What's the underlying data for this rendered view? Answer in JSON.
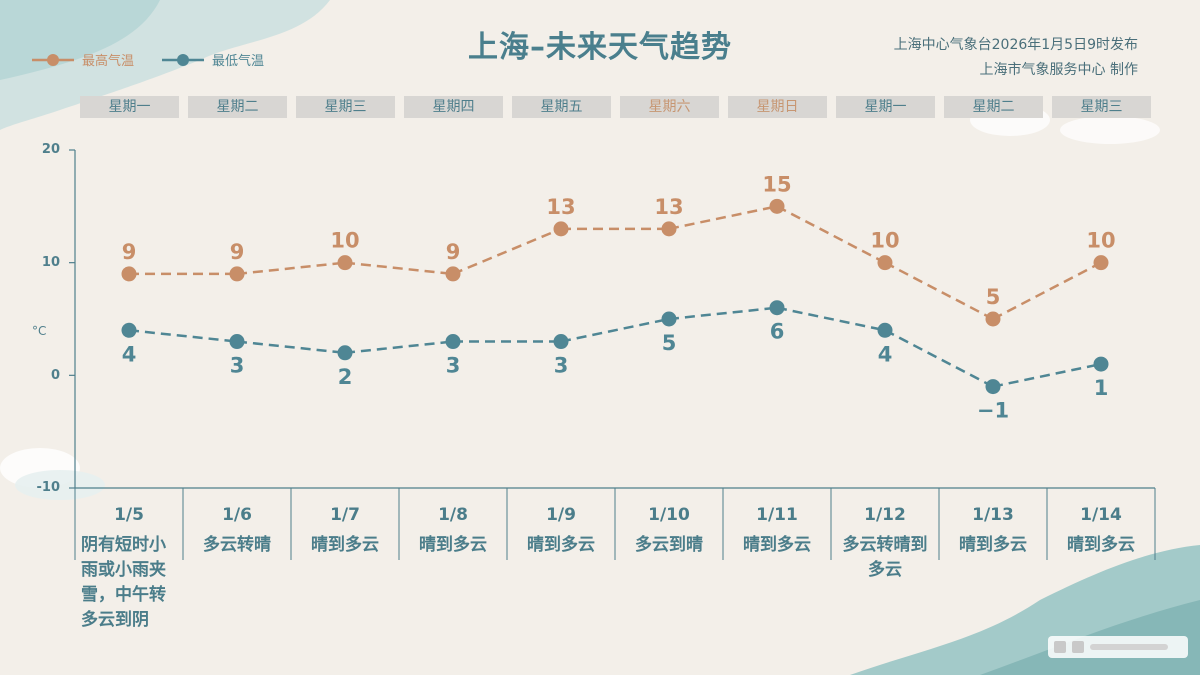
{
  "title": "上海–未来天气趋势",
  "issuer": "上海中心气象台2026年1月5日9时发布",
  "maker": "上海市气象服务中心  制作",
  "legend": {
    "high": "最高气温",
    "low": "最低气温"
  },
  "colors": {
    "high": "#c88e68",
    "low": "#4f8694",
    "axis": "#4f7f8c"
  },
  "weekdays": [
    {
      "label": "星期一",
      "weekend": false
    },
    {
      "label": "星期二",
      "weekend": false
    },
    {
      "label": "星期三",
      "weekend": false
    },
    {
      "label": "星期四",
      "weekend": false
    },
    {
      "label": "星期五",
      "weekend": false
    },
    {
      "label": "星期六",
      "weekend": true
    },
    {
      "label": "星期日",
      "weekend": true
    },
    {
      "label": "星期一",
      "weekend": false
    },
    {
      "label": "星期二",
      "weekend": false
    },
    {
      "label": "星期三",
      "weekend": false
    }
  ],
  "chart_data": {
    "type": "line",
    "title": "上海–未来天气趋势",
    "ylabel": "°C",
    "ylim": [
      -10,
      20
    ],
    "yticks": [
      "20",
      "10",
      "0",
      "-10"
    ],
    "categories": [
      "1/5",
      "1/6",
      "1/7",
      "1/8",
      "1/9",
      "1/10",
      "1/11",
      "1/12",
      "1/13",
      "1/14"
    ],
    "weather": [
      "阴有短时小雨或小雨夹雪，中午转多云到阴",
      "多云转晴",
      "晴到多云",
      "晴到多云",
      "晴到多云",
      "多云到晴",
      "晴到多云",
      "多云转晴到多云",
      "晴到多云",
      "晴到多云"
    ],
    "series": [
      {
        "name": "最高气温",
        "values": [
          9,
          9,
          10,
          9,
          13,
          13,
          15,
          10,
          5,
          10
        ]
      },
      {
        "name": "最低气温",
        "values": [
          4,
          3,
          2,
          3,
          3,
          5,
          6,
          4,
          -1,
          1
        ]
      }
    ],
    "high_labels": [
      "9",
      "9",
      "10",
      "9",
      "13",
      "13",
      "15",
      "10",
      "5",
      "10"
    ],
    "low_labels": [
      "4",
      "3",
      "2",
      "3",
      "3",
      "5",
      "6",
      "4",
      "−1",
      "1"
    ],
    "legend_position": "top-left",
    "grid": false
  }
}
